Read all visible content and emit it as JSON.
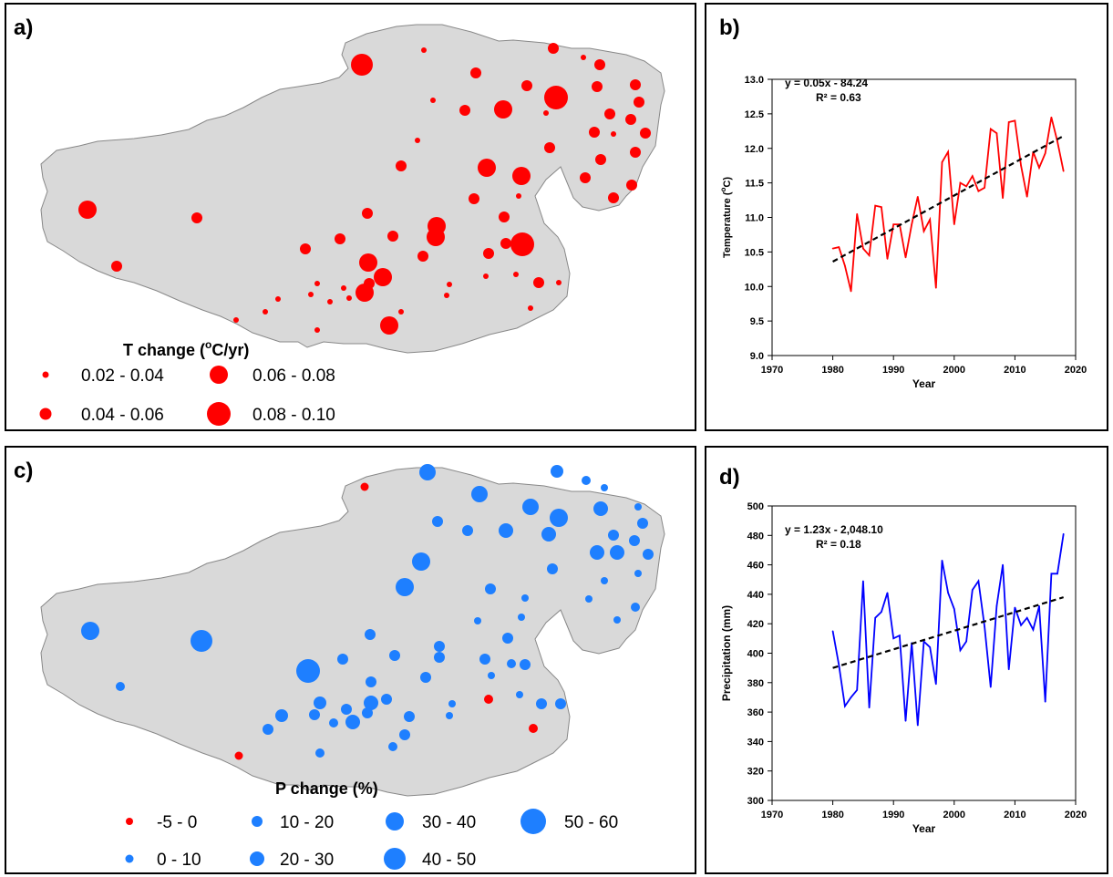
{
  "panels": {
    "a": {
      "label": "a)",
      "legend_title_pre": "T change (",
      "legend_title_sup": "o",
      "legend_title_post": "C/yr)",
      "legend": [
        "0.02 - 0.04",
        "0.04 - 0.06",
        "0.06 - 0.08",
        "0.08 - 0.10"
      ]
    },
    "b": {
      "label": "b)"
    },
    "c": {
      "label": "c)",
      "legend_title": "P change (%)",
      "legend": [
        "-5 - 0",
        "0 - 10",
        "10 - 20",
        "20 - 30",
        "30 - 40",
        "40 - 50",
        "50 - 60"
      ]
    },
    "d": {
      "label": "d)"
    }
  },
  "colors": {
    "temperature": "#ff0000",
    "precipitation": "#0000ff",
    "increase": "#1e7fff",
    "decrease": "#ff0000",
    "land": "#d9d9d9",
    "trend": "#000000"
  },
  "chart_data": [
    {
      "type": "line",
      "panel": "b",
      "xlabel": "Year",
      "ylabel_pre": "Temperature (",
      "ylabel_sup": "o",
      "ylabel_post": "C)",
      "xlim": [
        1970,
        2020
      ],
      "ylim": [
        9.0,
        13.0
      ],
      "xticks": [
        "1970",
        "1980",
        "1990",
        "2000",
        "2010",
        "2020"
      ],
      "yticks": [
        "9.0",
        "9.5",
        "10.0",
        "10.5",
        "11.0",
        "11.5",
        "12.0",
        "12.5",
        "13.0"
      ],
      "equation": "y = 0.05x - 84.24",
      "r2": "R² = 0.63",
      "x": [
        1980,
        1981,
        1982,
        1983,
        1984,
        1985,
        1986,
        1987,
        1988,
        1989,
        1990,
        1991,
        1992,
        1993,
        1994,
        1995,
        1996,
        1997,
        1998,
        1999,
        2000,
        2001,
        2002,
        2003,
        2004,
        2005,
        2006,
        2007,
        2008,
        2009,
        2010,
        2011,
        2012,
        2013,
        2014,
        2015,
        2016,
        2017,
        2018
      ],
      "y": [
        10.55,
        10.57,
        10.3,
        9.93,
        11.05,
        10.55,
        10.45,
        11.17,
        11.15,
        10.4,
        10.9,
        10.9,
        10.42,
        10.9,
        11.3,
        10.8,
        10.97,
        9.98,
        11.8,
        11.95,
        10.9,
        11.5,
        11.45,
        11.6,
        11.38,
        11.43,
        12.28,
        12.22,
        11.28,
        12.38,
        12.4,
        11.75,
        11.3,
        11.95,
        11.72,
        11.93,
        12.45,
        12.1,
        11.67
      ],
      "trend": {
        "x": [
          1980,
          2018
        ],
        "y": [
          10.36,
          12.18
        ]
      }
    },
    {
      "type": "line",
      "panel": "d",
      "xlabel": "Year",
      "ylabel": "Precipitation (mm)",
      "xlim": [
        1970,
        2020
      ],
      "ylim": [
        300,
        500
      ],
      "xticks": [
        "1970",
        "1980",
        "1990",
        "2000",
        "2010",
        "2020"
      ],
      "yticks": [
        "300",
        "320",
        "340",
        "360",
        "380",
        "400",
        "420",
        "440",
        "460",
        "480",
        "500"
      ],
      "equation": "y = 1.23x - 2,048.10",
      "r2": "R² = 0.18",
      "x": [
        1980,
        1981,
        1982,
        1983,
        1984,
        1985,
        1986,
        1987,
        1988,
        1989,
        1990,
        1991,
        1992,
        1993,
        1994,
        1995,
        1996,
        1997,
        1998,
        1999,
        2000,
        2001,
        2002,
        2003,
        2004,
        2005,
        2006,
        2007,
        2008,
        2009,
        2010,
        2011,
        2012,
        2013,
        2014,
        2015,
        2016,
        2017,
        2018
      ],
      "y": [
        415,
        392,
        364,
        370,
        375,
        449,
        363,
        424,
        428,
        441,
        410,
        412,
        354,
        407,
        351,
        408,
        404,
        379,
        463,
        441,
        430,
        402,
        408,
        443,
        449,
        418,
        377,
        432,
        460,
        389,
        431,
        419,
        424,
        416,
        432,
        367,
        454,
        454,
        481
      ],
      "trend": {
        "x": [
          1980,
          2018
        ],
        "y": [
          390,
          438
        ]
      }
    }
  ]
}
